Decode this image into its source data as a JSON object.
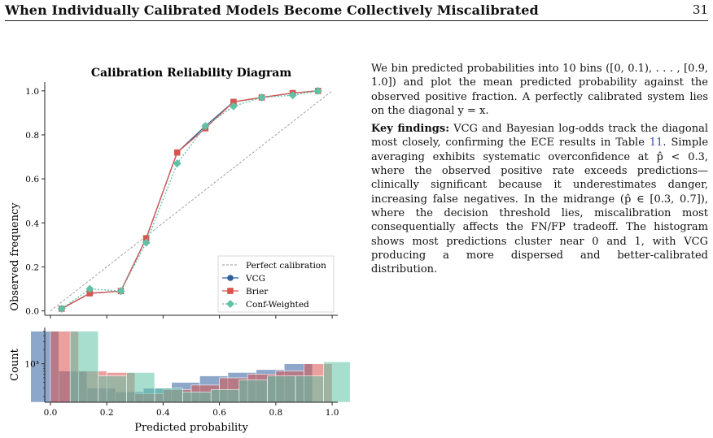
{
  "header": {
    "title": "When Individually Calibrated Models Become Collectively Miscalibrated",
    "page_number": "31"
  },
  "body_text": {
    "p1": "We bin predicted probabilities into 10 bins ([0, 0.1), . . . , [0.9, 1.0]) and plot the mean predicted probability against the observed positive fraction. A perfectly calibrated system lies on the diagonal y = x.",
    "p2_lead": "Key findings:",
    "p2_pre": " VCG and Bayesian log-odds track the diagonal most closely, confirming the ECE results in Table ",
    "p2_ref": "11",
    "p2_post": ". Simple averaging exhibits systematic overconfidence at p̂ < 0.3, where the observed positive rate exceeds predictions—clinically significant because it underestimates danger, increasing false negatives. In the midrange (p̂ ∈ [0.3, 0.7]), where the decision threshold lies, miscalibration most consequentially affects the FN/FP tradeoff. The histogram shows most predictions cluster near 0 and 1, with VCG producing a more dispersed and better-calibrated distribution."
  },
  "chart_data": [
    {
      "type": "line",
      "title": "Calibration Reliability Diagram",
      "xlabel": "",
      "ylabel": "Observed frequency",
      "xlim": [
        -0.02,
        1.02
      ],
      "ylim": [
        -0.02,
        1.04
      ],
      "yticks": [
        "0.0",
        "0.2",
        "0.4",
        "0.6",
        "0.8",
        "1.0"
      ],
      "legend_placement": "lower-right",
      "diagonal": {
        "name": "Perfect calibration",
        "color": "#999999"
      },
      "series": [
        {
          "name": "VCG",
          "color": "#2f5f9e",
          "marker": "circle",
          "x": [
            0.04,
            0.14,
            0.25,
            0.34,
            0.45,
            0.55,
            0.65,
            0.75,
            0.86,
            0.95
          ],
          "y": [
            0.01,
            0.08,
            0.09,
            0.33,
            0.72,
            0.84,
            0.95,
            0.97,
            0.99,
            1.0
          ]
        },
        {
          "name": "Brier",
          "color": "#d9534f",
          "marker": "square",
          "x": [
            0.04,
            0.14,
            0.25,
            0.34,
            0.45,
            0.55,
            0.65,
            0.75,
            0.86,
            0.95
          ],
          "y": [
            0.01,
            0.08,
            0.09,
            0.33,
            0.72,
            0.83,
            0.95,
            0.97,
            0.99,
            1.0
          ]
        },
        {
          "name": "Conf-Weighted",
          "color": "#5fc2a6",
          "marker": "diamond",
          "x": [
            0.04,
            0.14,
            0.25,
            0.34,
            0.45,
            0.55,
            0.65,
            0.75,
            0.86,
            0.95
          ],
          "y": [
            0.01,
            0.1,
            0.09,
            0.31,
            0.67,
            0.84,
            0.93,
            0.97,
            0.98,
            1.0
          ]
        }
      ]
    },
    {
      "type": "bar",
      "xlabel": "Predicted probability",
      "ylabel": "Count",
      "xlim": [
        -0.02,
        1.02
      ],
      "xticks": [
        "0.0",
        "0.2",
        "0.4",
        "0.6",
        "0.8",
        "1.0"
      ],
      "y_scale": "log",
      "ylim": [
        150,
        6000
      ],
      "ytick_label": "10³",
      "ytick_value": 1000,
      "bin_edges": [
        0.0,
        0.1,
        0.2,
        0.3,
        0.4,
        0.5,
        0.6,
        0.7,
        0.8,
        0.9,
        1.0
      ],
      "series": [
        {
          "name": "VCG",
          "color": "#2f5f9e",
          "offset": -0.07,
          "values": [
            5000,
            700,
            300,
            250,
            300,
            400,
            550,
            650,
            750,
            1000
          ]
        },
        {
          "name": "Brier",
          "color": "#d9534f",
          "offset": 0.0,
          "values": [
            5000,
            700,
            650,
            230,
            280,
            350,
            500,
            600,
            700,
            1000
          ]
        },
        {
          "name": "Conf-Weighted",
          "color": "#5fc2a6",
          "offset": 0.07,
          "values": [
            5000,
            550,
            650,
            300,
            250,
            280,
            450,
            550,
            550,
            1100
          ]
        }
      ]
    }
  ]
}
